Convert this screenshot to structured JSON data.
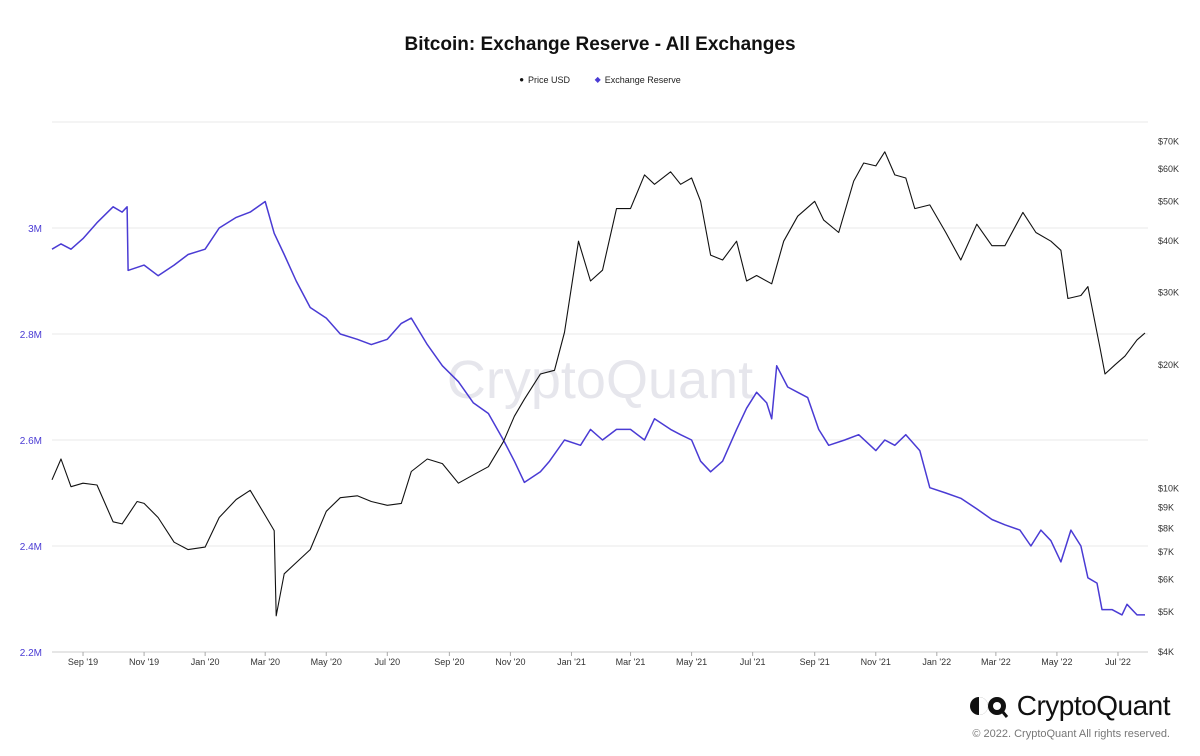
{
  "title": "Bitcoin: Exchange Reserve - All Exchanges",
  "legend": [
    {
      "label": "Price USD",
      "color": "#111111"
    },
    {
      "label": "Exchange Reserve",
      "color": "#4a3bd4"
    }
  ],
  "watermark": "CryptoQuant",
  "brand": {
    "name": "CryptoQuant"
  },
  "copyright": "© 2022. CryptoQuant All rights reserved.",
  "chart_data": {
    "type": "line",
    "title": "Bitcoin: Exchange Reserve - All Exchanges",
    "x_ticks": [
      "Sep '19",
      "Nov '19",
      "Jan '20",
      "Mar '20",
      "May '20",
      "Jul '20",
      "Sep '20",
      "Nov '20",
      "Jan '21",
      "Mar '21",
      "May '21",
      "Jul '21",
      "Sep '21",
      "Nov '21",
      "Jan '22",
      "Mar '22",
      "May '22",
      "Jul '22"
    ],
    "left_axis": {
      "ticks": [
        "2.2M",
        "2.4M",
        "2.6M",
        "2.8M",
        "3M"
      ],
      "values": [
        2200000,
        2400000,
        2600000,
        2800000,
        3000000
      ],
      "range": [
        2200000,
        3200000
      ],
      "color": "#4a3bd4"
    },
    "right_axis": {
      "scale": "log",
      "ticks": [
        "$4K",
        "$5K",
        "$6K",
        "$7K",
        "$8K",
        "$9K",
        "$10K",
        "$20K",
        "$30K",
        "$40K",
        "$50K",
        "$60K",
        "$70K"
      ],
      "values": [
        4000,
        5000,
        6000,
        7000,
        8000,
        9000,
        10000,
        20000,
        30000,
        40000,
        50000,
        60000,
        70000
      ],
      "range": [
        4000,
        78000
      ]
    },
    "grid": "horizontal",
    "legend_position": "top-center",
    "series": [
      {
        "name": "Exchange Reserve",
        "axis": "left",
        "color": "#4a3bd4",
        "x": [
          "2019-08-01",
          "2019-08-10",
          "2019-08-20",
          "2019-09-01",
          "2019-09-15",
          "2019-10-01",
          "2019-10-10",
          "2019-10-15",
          "2019-10-16",
          "2019-11-01",
          "2019-11-15",
          "2019-12-01",
          "2019-12-15",
          "2020-01-01",
          "2020-01-15",
          "2020-02-01",
          "2020-02-15",
          "2020-03-01",
          "2020-03-10",
          "2020-03-20",
          "2020-04-01",
          "2020-04-15",
          "2020-05-01",
          "2020-05-15",
          "2020-06-01",
          "2020-06-15",
          "2020-07-01",
          "2020-07-15",
          "2020-07-25",
          "2020-08-10",
          "2020-08-25",
          "2020-09-10",
          "2020-09-25",
          "2020-10-10",
          "2020-10-25",
          "2020-11-05",
          "2020-11-15",
          "2020-12-01",
          "2020-12-10",
          "2020-12-25",
          "2021-01-10",
          "2021-01-20",
          "2021-02-01",
          "2021-02-15",
          "2021-03-01",
          "2021-03-15",
          "2021-03-25",
          "2021-04-10",
          "2021-04-20",
          "2021-05-01",
          "2021-05-10",
          "2021-05-20",
          "2021-06-01",
          "2021-06-15",
          "2021-06-25",
          "2021-07-05",
          "2021-07-15",
          "2021-07-20",
          "2021-07-25",
          "2021-08-05",
          "2021-08-15",
          "2021-08-25",
          "2021-09-05",
          "2021-09-15",
          "2021-10-01",
          "2021-10-15",
          "2021-11-01",
          "2021-11-10",
          "2021-11-20",
          "2021-12-01",
          "2021-12-15",
          "2021-12-25",
          "2022-01-10",
          "2022-01-25",
          "2022-02-10",
          "2022-02-25",
          "2022-03-10",
          "2022-03-25",
          "2022-04-05",
          "2022-04-15",
          "2022-04-25",
          "2022-05-05",
          "2022-05-15",
          "2022-05-25",
          "2022-06-01",
          "2022-06-10",
          "2022-06-15",
          "2022-06-25",
          "2022-07-05",
          "2022-07-10",
          "2022-07-20",
          "2022-07-28"
        ],
        "y": [
          2960000,
          2970000,
          2960000,
          2980000,
          3010000,
          3040000,
          3030000,
          3040000,
          2920000,
          2930000,
          2910000,
          2930000,
          2950000,
          2960000,
          3000000,
          3020000,
          3030000,
          3050000,
          2990000,
          2950000,
          2900000,
          2850000,
          2830000,
          2800000,
          2790000,
          2780000,
          2790000,
          2820000,
          2830000,
          2780000,
          2740000,
          2710000,
          2670000,
          2650000,
          2600000,
          2560000,
          2520000,
          2540000,
          2560000,
          2600000,
          2590000,
          2620000,
          2600000,
          2620000,
          2620000,
          2600000,
          2640000,
          2620000,
          2610000,
          2600000,
          2560000,
          2540000,
          2560000,
          2620000,
          2660000,
          2690000,
          2670000,
          2640000,
          2740000,
          2700000,
          2690000,
          2680000,
          2620000,
          2590000,
          2600000,
          2610000,
          2580000,
          2600000,
          2590000,
          2610000,
          2580000,
          2510000,
          2500000,
          2490000,
          2470000,
          2450000,
          2440000,
          2430000,
          2400000,
          2430000,
          2410000,
          2370000,
          2430000,
          2400000,
          2340000,
          2330000,
          2280000,
          2280000,
          2270000,
          2290000,
          2270000,
          2270000
        ]
      },
      {
        "name": "Price USD",
        "axis": "right",
        "color": "#111111",
        "x": [
          "2019-08-01",
          "2019-08-10",
          "2019-08-20",
          "2019-09-01",
          "2019-09-15",
          "2019-10-01",
          "2019-10-10",
          "2019-10-25",
          "2019-11-01",
          "2019-11-15",
          "2019-12-01",
          "2019-12-15",
          "2020-01-01",
          "2020-01-15",
          "2020-02-01",
          "2020-02-15",
          "2020-03-01",
          "2020-03-10",
          "2020-03-12",
          "2020-03-20",
          "2020-04-01",
          "2020-04-15",
          "2020-05-01",
          "2020-05-15",
          "2020-06-01",
          "2020-06-15",
          "2020-07-01",
          "2020-07-15",
          "2020-07-25",
          "2020-08-10",
          "2020-08-25",
          "2020-09-10",
          "2020-09-25",
          "2020-10-10",
          "2020-10-25",
          "2020-11-05",
          "2020-11-15",
          "2020-12-01",
          "2020-12-15",
          "2020-12-25",
          "2021-01-08",
          "2021-01-20",
          "2021-02-01",
          "2021-02-15",
          "2021-03-01",
          "2021-03-15",
          "2021-03-25",
          "2021-04-10",
          "2021-04-20",
          "2021-05-01",
          "2021-05-10",
          "2021-05-20",
          "2021-06-01",
          "2021-06-15",
          "2021-06-25",
          "2021-07-05",
          "2021-07-20",
          "2021-08-01",
          "2021-08-15",
          "2021-09-01",
          "2021-09-10",
          "2021-09-25",
          "2021-10-10",
          "2021-10-20",
          "2021-11-01",
          "2021-11-10",
          "2021-11-20",
          "2021-12-01",
          "2021-12-10",
          "2021-12-25",
          "2022-01-10",
          "2022-01-25",
          "2022-02-10",
          "2022-02-25",
          "2022-03-10",
          "2022-03-28",
          "2022-04-10",
          "2022-04-25",
          "2022-05-05",
          "2022-05-12",
          "2022-05-25",
          "2022-06-01",
          "2022-06-13",
          "2022-06-18",
          "2022-06-28",
          "2022-07-08",
          "2022-07-20",
          "2022-07-28"
        ],
        "y": [
          10500,
          11800,
          10100,
          10300,
          10200,
          8300,
          8200,
          9300,
          9200,
          8500,
          7400,
          7100,
          7200,
          8500,
          9400,
          9900,
          8600,
          7900,
          4900,
          6200,
          6600,
          7100,
          8800,
          9500,
          9600,
          9300,
          9100,
          9200,
          11000,
          11800,
          11500,
          10300,
          10800,
          11300,
          13000,
          15000,
          16500,
          19000,
          19400,
          24000,
          40000,
          32000,
          34000,
          48000,
          48000,
          58000,
          55000,
          59000,
          55000,
          57000,
          50000,
          37000,
          36000,
          40000,
          32000,
          33000,
          31500,
          40000,
          46000,
          50000,
          45000,
          42000,
          56000,
          62000,
          61000,
          66000,
          58000,
          57000,
          48000,
          49000,
          42000,
          36000,
          44000,
          39000,
          39000,
          47000,
          42000,
          40000,
          38000,
          29000,
          29500,
          31000,
          22000,
          19000,
          20000,
          21000,
          23000,
          23900
        ]
      }
    ]
  }
}
